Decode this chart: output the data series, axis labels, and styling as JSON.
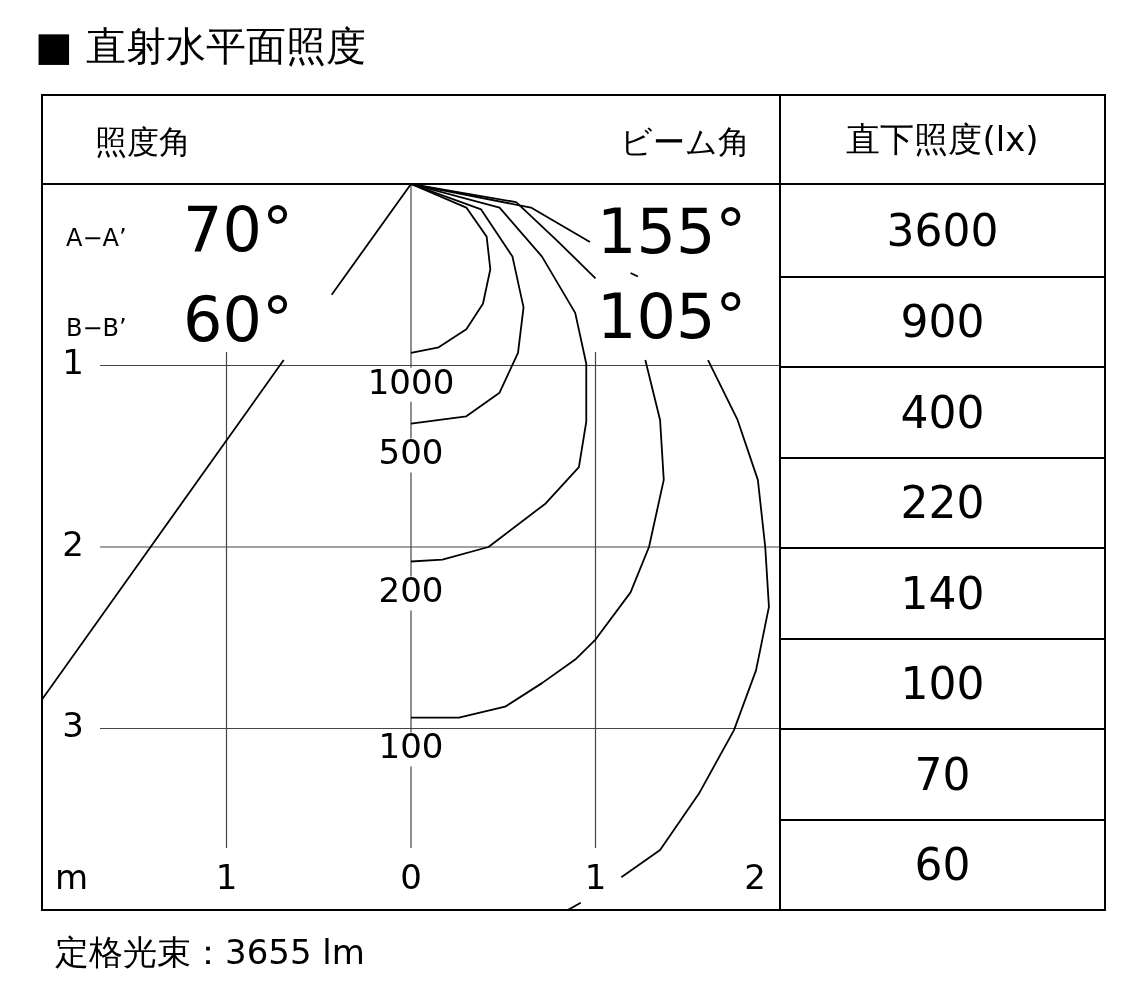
{
  "chart_data": [
    {
      "type": "line",
      "title": "■ 直射水平面照度",
      "xlabel": "m",
      "xlim": [
        -2,
        2
      ],
      "xticks": [
        {
          "value": -1,
          "label": "1"
        },
        0,
        1,
        2
      ],
      "ylim": [
        4,
        0
      ],
      "yticks": [
        1,
        2,
        3
      ],
      "grid": true,
      "series": [
        {
          "name": "1000",
          "color": "#000000",
          "x": [
            0,
            0.3,
            0.41,
            0.43,
            0.39,
            0.3,
            0.15,
            0
          ],
          "values": [
            0,
            0.13,
            0.29,
            0.47,
            0.66,
            0.8,
            0.9,
            0.93
          ]
        },
        {
          "name": "500",
          "color": "#000000",
          "x": [
            0,
            0.38,
            0.55,
            0.61,
            0.58,
            0.48,
            0.3,
            0
          ],
          "values": [
            0,
            0.14,
            0.4,
            0.68,
            0.93,
            1.15,
            1.28,
            1.32
          ]
        },
        {
          "name": "200",
          "color": "#000000",
          "x": [
            0,
            0.48,
            0.71,
            0.89,
            0.95,
            0.95,
            0.91,
            0.73,
            0.42,
            0.17,
            0
          ],
          "values": [
            0,
            0.13,
            0.4,
            0.71,
            0.99,
            1.31,
            1.56,
            1.76,
            2.0,
            2.07,
            2.08
          ]
        },
        {
          "name": "100",
          "color": "#000000",
          "x": [
            0,
            0.57,
            0.8,
            1.0,
            1.1,
            1.27,
            1.35,
            1.37,
            1.29,
            1.19,
            1.0,
            0.89,
            0.71,
            0.51,
            0.26,
            0
          ],
          "values": [
            0,
            0.1,
            0.32,
            0.52,
            null,
            0.97,
            1.3,
            1.63,
            2.0,
            2.25,
            2.51,
            2.62,
            2.75,
            2.88,
            2.94,
            2.94
          ]
        },
        {
          "color": "#000000",
          "x": [
            0,
            0.65,
            0.97,
            1.05,
            1.19,
            1.23,
            1.4,
            1.61,
            1.77,
            1.88,
            1.92,
            1.94,
            1.87,
            1.75,
            1.56,
            1.35,
            1.14,
            1.0,
            0.92,
            0.85
          ],
          "values": [
            0,
            0.13,
            0.32,
            null,
            0.49,
            0.51,
            null,
            0.97,
            1.3,
            1.63,
            2.0,
            2.33,
            2.68,
            3.01,
            3.36,
            3.67,
            3.82,
            null,
            3.96,
            4.0
          ]
        },
        {
          "color": "#000000",
          "x": [
            0,
            -0.43,
            -0.55,
            -0.69,
            -2.0
          ],
          "values": [
            0,
            0.61,
            null,
            0.97,
            2.84
          ]
        }
      ],
      "annotations": [
        "照度角",
        "ビーム角",
        "A−A’",
        "70°",
        "B−B’",
        "60°",
        "155°",
        "105°",
        "定格光束：3655 lm"
      ]
    },
    {
      "type": "other",
      "title": "直下照度(lx)",
      "annotations": [
        "3600",
        "900",
        "400",
        "220",
        "140",
        "100",
        "70",
        "60"
      ]
    }
  ]
}
